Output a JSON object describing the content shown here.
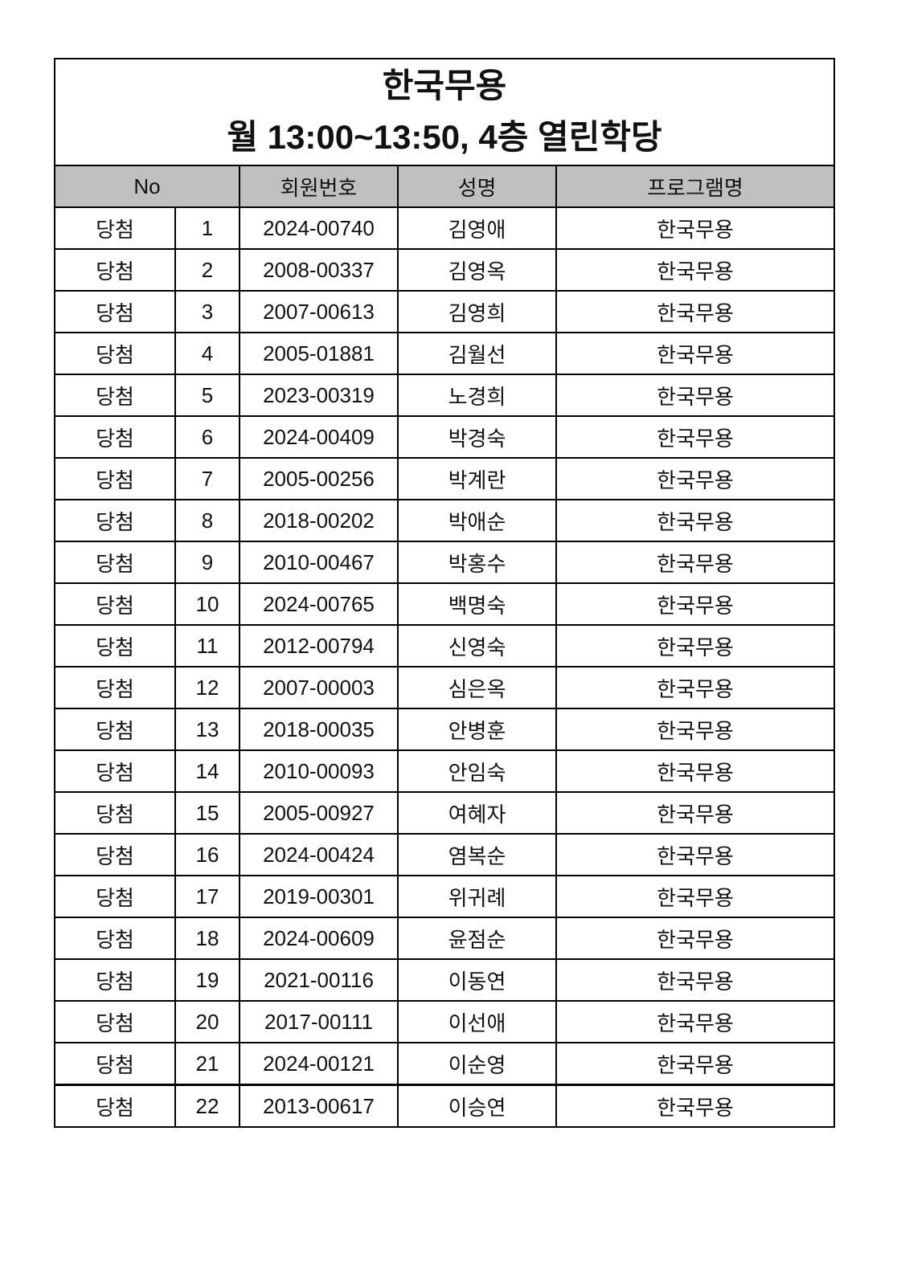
{
  "title": "한국무용",
  "subtitle": "월 13:00~13:50, 4층 열린학당",
  "header": {
    "no": "No",
    "member_id": "회원번호",
    "name": "성명",
    "program": "프로그램명"
  },
  "rows": [
    {
      "status": "당첨",
      "no": "1",
      "member_id": "2024-00740",
      "name": "김영애",
      "program": "한국무용"
    },
    {
      "status": "당첨",
      "no": "2",
      "member_id": "2008-00337",
      "name": "김영옥",
      "program": "한국무용"
    },
    {
      "status": "당첨",
      "no": "3",
      "member_id": "2007-00613",
      "name": "김영희",
      "program": "한국무용"
    },
    {
      "status": "당첨",
      "no": "4",
      "member_id": "2005-01881",
      "name": "김월선",
      "program": "한국무용"
    },
    {
      "status": "당첨",
      "no": "5",
      "member_id": "2023-00319",
      "name": "노경희",
      "program": "한국무용"
    },
    {
      "status": "당첨",
      "no": "6",
      "member_id": "2024-00409",
      "name": "박경숙",
      "program": "한국무용"
    },
    {
      "status": "당첨",
      "no": "7",
      "member_id": "2005-00256",
      "name": "박계란",
      "program": "한국무용"
    },
    {
      "status": "당첨",
      "no": "8",
      "member_id": "2018-00202",
      "name": "박애순",
      "program": "한국무용"
    },
    {
      "status": "당첨",
      "no": "9",
      "member_id": "2010-00467",
      "name": "박홍수",
      "program": "한국무용"
    },
    {
      "status": "당첨",
      "no": "10",
      "member_id": "2024-00765",
      "name": "백명숙",
      "program": "한국무용"
    },
    {
      "status": "당첨",
      "no": "11",
      "member_id": "2012-00794",
      "name": "신영숙",
      "program": "한국무용"
    },
    {
      "status": "당첨",
      "no": "12",
      "member_id": "2007-00003",
      "name": "심은옥",
      "program": "한국무용"
    },
    {
      "status": "당첨",
      "no": "13",
      "member_id": "2018-00035",
      "name": "안병훈",
      "program": "한국무용"
    },
    {
      "status": "당첨",
      "no": "14",
      "member_id": "2010-00093",
      "name": "안임숙",
      "program": "한국무용"
    },
    {
      "status": "당첨",
      "no": "15",
      "member_id": "2005-00927",
      "name": "여혜자",
      "program": "한국무용"
    },
    {
      "status": "당첨",
      "no": "16",
      "member_id": "2024-00424",
      "name": "염복순",
      "program": "한국무용"
    },
    {
      "status": "당첨",
      "no": "17",
      "member_id": "2019-00301",
      "name": "위귀례",
      "program": "한국무용"
    },
    {
      "status": "당첨",
      "no": "18",
      "member_id": "2024-00609",
      "name": "윤점순",
      "program": "한국무용"
    },
    {
      "status": "당첨",
      "no": "19",
      "member_id": "2021-00116",
      "name": "이동연",
      "program": "한국무용"
    },
    {
      "status": "당첨",
      "no": "20",
      "member_id": "2017-00111",
      "name": "이선애",
      "program": "한국무용"
    },
    {
      "status": "당첨",
      "no": "21",
      "member_id": "2024-00121",
      "name": "이순영",
      "program": "한국무용"
    },
    {
      "status": "당첨",
      "no": "22",
      "member_id": "2013-00617",
      "name": "이승연",
      "program": "한국무용"
    }
  ]
}
